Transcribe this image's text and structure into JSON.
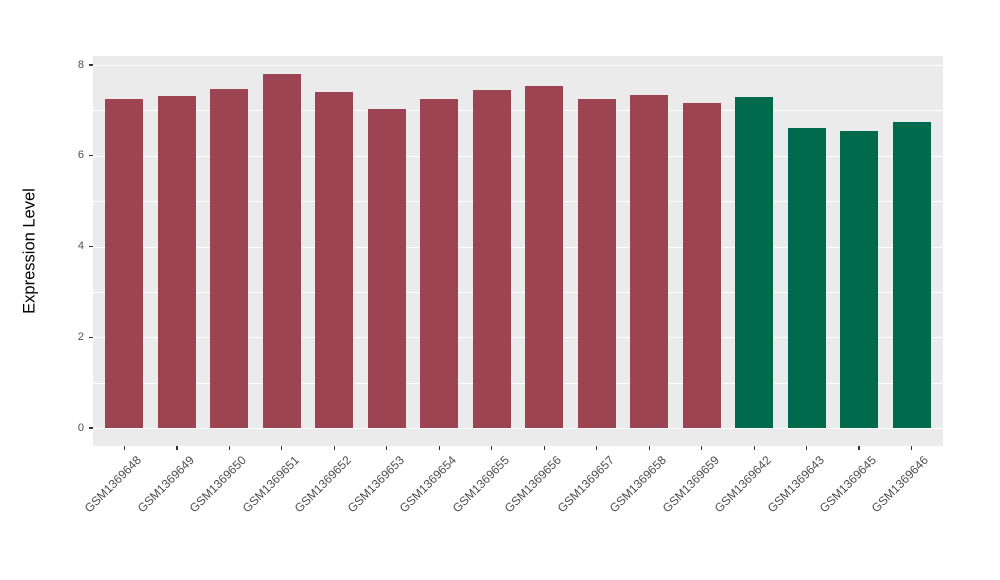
{
  "chart_data": {
    "type": "bar",
    "title": "",
    "xlabel": "",
    "ylabel": "Expression Level",
    "ylim": [
      0,
      8
    ],
    "yticks_major": [
      0,
      2,
      4,
      6,
      8
    ],
    "yticks_minor": [
      1,
      3,
      5,
      7
    ],
    "grid": "white major and minor gridlines on grey panel",
    "legend_position": "none",
    "x_tick_angle_deg": 45,
    "categories": [
      "GSM1369648",
      "GSM1369649",
      "GSM1369650",
      "GSM1369651",
      "GSM1369652",
      "GSM1369653",
      "GSM1369654",
      "GSM1369655",
      "GSM1369656",
      "GSM1369657",
      "GSM1369658",
      "GSM1369659",
      "GSM1369642",
      "GSM1369643",
      "GSM1369645",
      "GSM1369646"
    ],
    "values": [
      7.26,
      7.32,
      7.47,
      7.8,
      7.41,
      7.03,
      7.25,
      7.46,
      7.54,
      7.25,
      7.33,
      7.17,
      7.29,
      6.62,
      6.55,
      6.75
    ],
    "bar_colors": [
      "#9D4452",
      "#9D4452",
      "#9D4452",
      "#9D4452",
      "#9D4452",
      "#9D4452",
      "#9D4452",
      "#9D4452",
      "#9D4452",
      "#9D4452",
      "#9D4452",
      "#9D4452",
      "#006B4C",
      "#006B4C",
      "#006B4C",
      "#006B4C"
    ],
    "color_groups": [
      {
        "color": "#9D4452",
        "bar_count": 12
      },
      {
        "color": "#006B4C",
        "bar_count": 4
      }
    ]
  },
  "style": {
    "panel_bg": "#EBEBEB",
    "grid_color": "#FFFFFF",
    "axis_text_color": "#4D4D4D",
    "tick_color": "#333333",
    "axis_title_color": "#000000",
    "page_bg": "#FFFFFF"
  }
}
